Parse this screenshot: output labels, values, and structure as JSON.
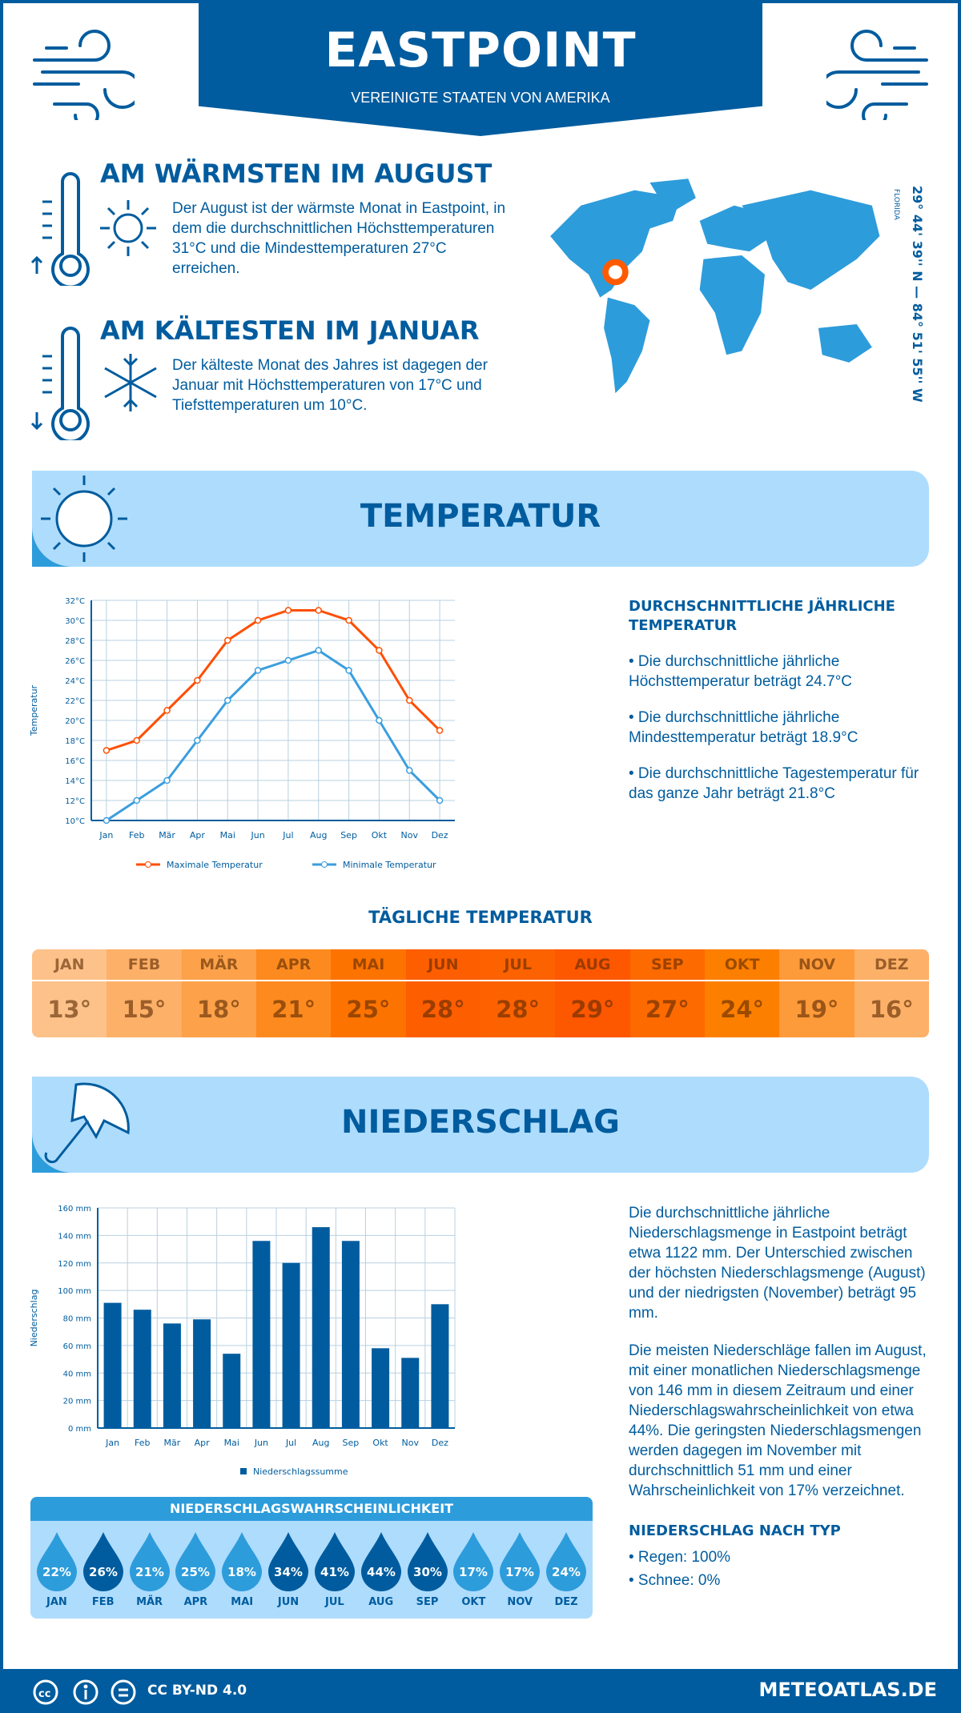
{
  "header": {
    "title": "EASTPOINT",
    "subtitle": "VEREINIGTE STAATEN VON AMERIKA"
  },
  "warmest": {
    "heading": "AM WÄRMSTEN IM AUGUST",
    "text": "Der August ist der wärmste Monat in Eastpoint, in dem die durchschnittlichen Höchsttemperaturen 31°C und die Mindesttemperaturen 27°C erreichen."
  },
  "coldest": {
    "heading": "AM KÄLTESTEN IM JANUAR",
    "text": "Der kälteste Monat des Jahres ist dagegen der Januar mit Höchsttemperaturen von 17°C und Tiefsttemperaturen um 10°C."
  },
  "map": {
    "coordinates": "29° 44' 39'' N — 84° 51' 55'' W",
    "region": "FLORIDA",
    "marker_color": "#ff5a00"
  },
  "temperature": {
    "banner": "TEMPERATUR",
    "side_heading": "DURCHSCHNITTLICHE JÄHRLICHE TEMPERATUR",
    "bullets": [
      "• Die durchschnittliche jährliche Höchsttemperatur beträgt 24.7°C",
      "• Die durchschnittliche jährliche Mindesttemperatur beträgt 18.9°C",
      "• Die durchschnittliche Tagestemperatur für das ganze Jahr beträgt 21.8°C"
    ],
    "daily_heading": "TÄGLICHE TEMPERATUR",
    "daily": [
      {
        "month": "JAN",
        "value": "13°",
        "color": "#fdc28a"
      },
      {
        "month": "FEB",
        "value": "15°",
        "color": "#fdb068"
      },
      {
        "month": "MÄR",
        "value": "18°",
        "color": "#fda24a"
      },
      {
        "month": "APR",
        "value": "21°",
        "color": "#fd8a1f"
      },
      {
        "month": "MAI",
        "value": "25°",
        "color": "#fd7300"
      },
      {
        "month": "JUN",
        "value": "28°",
        "color": "#fd5e00"
      },
      {
        "month": "JUL",
        "value": "28°",
        "color": "#fd6200"
      },
      {
        "month": "AUG",
        "value": "29°",
        "color": "#fd5700"
      },
      {
        "month": "SEP",
        "value": "27°",
        "color": "#fd6a00"
      },
      {
        "month": "OKT",
        "value": "24°",
        "color": "#fd7f00"
      },
      {
        "month": "NOV",
        "value": "19°",
        "color": "#fd9a3a"
      },
      {
        "month": "DEZ",
        "value": "16°",
        "color": "#fdb068"
      }
    ]
  },
  "precipitation": {
    "banner": "NIEDERSCHLAG",
    "paragraph1": "Die durchschnittliche jährliche Niederschlagsmenge in Eastpoint beträgt etwa 1122 mm. Der Unterschied zwischen der höchsten Niederschlagsmenge (August) und der niedrigsten (November) beträgt 95 mm.",
    "paragraph2": "Die meisten Niederschläge fallen im August, mit einer monatlichen Niederschlagsmenge von 146 mm in diesem Zeitraum und einer Niederschlagswahrscheinlichkeit von etwa 44%. Die geringsten Niederschlagsmengen werden dagegen im November mit durchschnittlich 51 mm und einer Wahrscheinlichkeit von 17% verzeichnet.",
    "type_heading": "NIEDERSCHLAG NACH TYP",
    "types": [
      "• Regen: 100%",
      "• Schnee: 0%"
    ],
    "probability_heading": "NIEDERSCHLAGSWAHRSCHEINLICHKEIT",
    "probability": [
      {
        "month": "JAN",
        "value": "22%",
        "dark": false
      },
      {
        "month": "FEB",
        "value": "26%",
        "dark": true
      },
      {
        "month": "MÄR",
        "value": "21%",
        "dark": false
      },
      {
        "month": "APR",
        "value": "25%",
        "dark": false
      },
      {
        "month": "MAI",
        "value": "18%",
        "dark": false
      },
      {
        "month": "JUN",
        "value": "34%",
        "dark": true
      },
      {
        "month": "JUL",
        "value": "41%",
        "dark": true
      },
      {
        "month": "AUG",
        "value": "44%",
        "dark": true
      },
      {
        "month": "SEP",
        "value": "30%",
        "dark": true
      },
      {
        "month": "OKT",
        "value": "17%",
        "dark": false
      },
      {
        "month": "NOV",
        "value": "17%",
        "dark": false
      },
      {
        "month": "DEZ",
        "value": "24%",
        "dark": false
      }
    ]
  },
  "chart_data": [
    {
      "type": "line",
      "categories": [
        "Jan",
        "Feb",
        "Mär",
        "Apr",
        "Mai",
        "Jun",
        "Jul",
        "Aug",
        "Sep",
        "Okt",
        "Nov",
        "Dez"
      ],
      "ylabel": "Temperatur",
      "ylim": [
        10,
        32
      ],
      "yticks": [
        "10°C",
        "12°C",
        "14°C",
        "16°C",
        "18°C",
        "20°C",
        "22°C",
        "24°C",
        "26°C",
        "28°C",
        "30°C",
        "32°C"
      ],
      "grid": true,
      "legend": "bottom",
      "series": [
        {
          "name": "Maximale Temperatur",
          "color": "#ff4e00",
          "values": [
            17,
            18,
            21,
            24,
            28,
            30,
            31,
            31,
            30,
            27,
            22,
            19
          ]
        },
        {
          "name": "Minimale Temperatur",
          "color": "#3a9ede",
          "values": [
            10,
            12,
            14,
            18,
            22,
            25,
            26,
            27,
            25,
            20,
            15,
            12
          ]
        }
      ]
    },
    {
      "type": "bar",
      "categories": [
        "Jan",
        "Feb",
        "Mär",
        "Apr",
        "Mai",
        "Jun",
        "Jul",
        "Aug",
        "Sep",
        "Okt",
        "Nov",
        "Dez"
      ],
      "ylabel": "Niederschlag",
      "ylim": [
        0,
        160
      ],
      "yticks": [
        "0 mm",
        "20 mm",
        "40 mm",
        "60 mm",
        "80 mm",
        "100 mm",
        "120 mm",
        "140 mm",
        "160 mm"
      ],
      "grid": true,
      "legend": "bottom",
      "series": [
        {
          "name": "Niederschlagssumme",
          "color": "#005c9e",
          "values": [
            91,
            86,
            76,
            79,
            54,
            136,
            120,
            146,
            136,
            58,
            51,
            90
          ]
        }
      ]
    }
  ],
  "footer": {
    "license": "CC BY-ND 4.0",
    "site": "METEOATLAS.DE"
  }
}
